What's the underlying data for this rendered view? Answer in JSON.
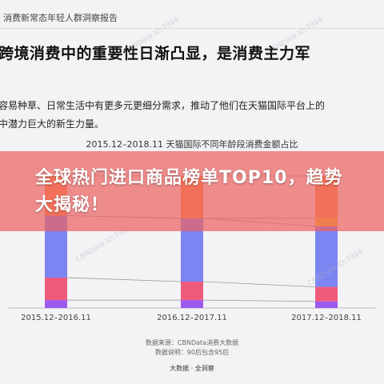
{
  "header": {
    "report_title": "消费新常态年轻人群洞察报告"
  },
  "headline": "跨境消费中的重要性日渐凸显，是消费主力军",
  "body": {
    "line1": "容易种草、日常生活中有更多元更细分需求，推动了他们在天猫国际平台上的",
    "line2": "中潜力巨大的新生力量。"
  },
  "watermarks": [
    "CBNData ID:7384",
    "CBNData ID:7384",
    "CBNData ID:7384",
    "CBNData ID:7384"
  ],
  "chart_data": {
    "type": "bar",
    "stacked": true,
    "title": "2015.12–2018.11 天猫国际不同年龄段消费金额占比",
    "categories": [
      "2015.12–2016.11",
      "2016.12–2017.11",
      "2017.12–2018.11"
    ],
    "series": [
      {
        "color": "#9b59f0",
        "values": [
          0.06,
          0.06,
          0.05
        ]
      },
      {
        "color": "#f05a7b",
        "values": [
          0.17,
          0.14,
          0.11
        ]
      },
      {
        "color": "#7b86f2",
        "values": [
          0.47,
          0.48,
          0.46
        ]
      },
      {
        "color": "#ffc51c",
        "values": [
          0.0,
          0.0,
          0.06
        ]
      },
      {
        "color": "#ff9242",
        "values": [
          0.3,
          0.32,
          0.32
        ]
      }
    ],
    "ylim": [
      0,
      1
    ],
    "grid": false,
    "connectors": true
  },
  "footer": {
    "source": "数据来源：CBNData消费大数据",
    "note": "数据说明：90后包含95后",
    "brand": "大数据 · 全洞察"
  },
  "overlay": {
    "text": "全球热门进口商品榜单TOP10，趋势大揭秘！",
    "color": "#ec6262"
  }
}
